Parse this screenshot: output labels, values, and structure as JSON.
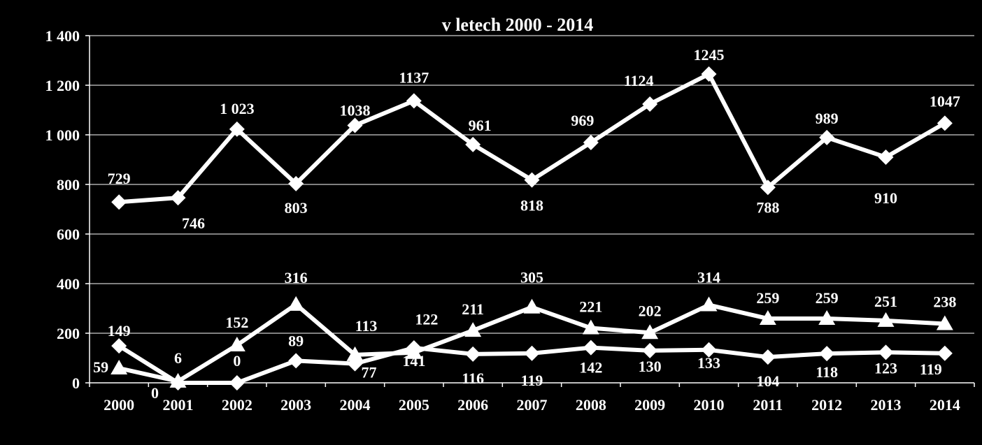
{
  "chart_data": {
    "type": "line",
    "title": "v letech 2000 - 2014",
    "xlabel": "",
    "ylabel": "",
    "categories": [
      "2000",
      "2001",
      "2002",
      "2003",
      "2004",
      "2005",
      "2006",
      "2007",
      "2008",
      "2009",
      "2010",
      "2011",
      "2012",
      "2013",
      "2014"
    ],
    "ylim": [
      0,
      1400
    ],
    "yticks": [
      0,
      200,
      400,
      600,
      800,
      1000,
      1200,
      1400
    ],
    "ytick_labels": [
      "0",
      "200",
      "400",
      "600",
      "800",
      "1 000",
      "1 200",
      "1 400"
    ],
    "grid": true,
    "legend": "none",
    "series": [
      {
        "marker": "diamond",
        "values": [
          729,
          746,
          1023,
          803,
          1038,
          1137,
          961,
          818,
          969,
          1124,
          1245,
          788,
          989,
          910,
          1047
        ],
        "labels": [
          "729",
          "746",
          "1 023",
          "803",
          "1038",
          "1137",
          "961",
          "818",
          "969",
          "1124",
          "1245",
          "788",
          "989",
          "910",
          "1047"
        ]
      },
      {
        "marker": "triangle",
        "values": [
          59,
          6,
          152,
          316,
          113,
          122,
          211,
          305,
          221,
          202,
          314,
          259,
          259,
          251,
          238
        ],
        "labels": [
          "59",
          "6",
          "152",
          "316",
          "113",
          "122",
          "211",
          "305",
          "221",
          "202",
          "314",
          "259",
          "259",
          "251",
          "238"
        ]
      },
      {
        "marker": "diamond",
        "values": [
          149,
          0,
          0,
          89,
          77,
          141,
          116,
          119,
          142,
          130,
          133,
          104,
          118,
          123,
          119
        ],
        "labels": [
          "149",
          "0",
          "0",
          "89",
          "77",
          "141",
          "116",
          "119",
          "142",
          "130",
          "133",
          "104",
          "118",
          "123",
          "119"
        ]
      }
    ],
    "colors": {
      "background": "#000000",
      "foreground": "#ffffff"
    }
  }
}
